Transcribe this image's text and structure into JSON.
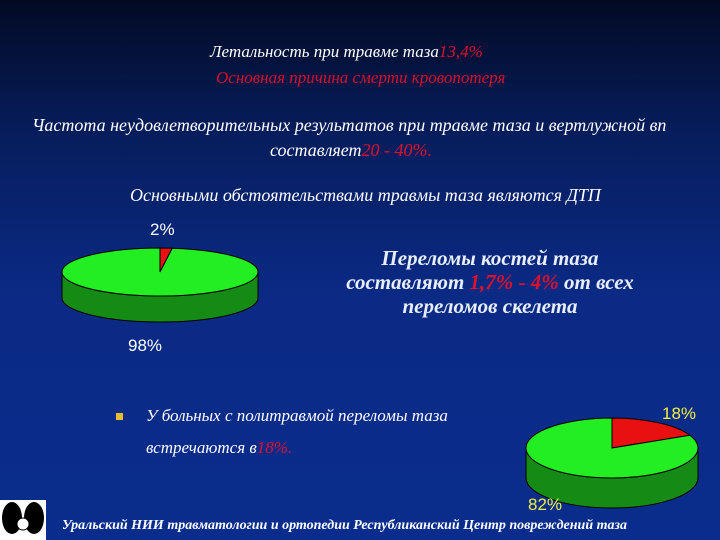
{
  "lines": {
    "mortality_prefix": "Летальность при травме таза",
    "mortality_value": "13,4%",
    "main_cause": "Основная причина смерти кровопотеря",
    "unsatisfactory": "Частота неудовлетворительных результатов при травме таза и вертлужной вп",
    "unsatisfactory_prefix": "составляет",
    "unsatisfactory_value": "20 - 40%.",
    "circumstances": "Основными обстоятельствами травмы таза являются ДТП",
    "fractures_a": "Переломы костей таза составляют ",
    "fractures_value": "1,7% - 4%",
    "fractures_b": " от всех переломов скелета",
    "bullet_line1": "У больных с политравмой переломы таза",
    "bullet_line2_prefix": "встречаются в",
    "bullet_line2_value": "18%.",
    "footer": "Уральский НИИ травматологии и ортопедии Республиканский Центр повреждений таза"
  },
  "chart_data": [
    {
      "type": "pie",
      "style": "3d",
      "values": [
        2,
        98
      ],
      "labels": [
        "2%",
        "98%"
      ],
      "colors": [
        "#e81010",
        "#22ee22"
      ],
      "label_color": "#ffffff"
    },
    {
      "type": "pie",
      "style": "3d",
      "values": [
        18,
        82
      ],
      "labels": [
        "18%",
        "82%"
      ],
      "colors": [
        "#e81010",
        "#22ee22"
      ],
      "label_color": "#f0f040"
    }
  ],
  "colors": {
    "accent": "#e0102a",
    "side_green": "#158a15",
    "side_red": "#a00808"
  }
}
